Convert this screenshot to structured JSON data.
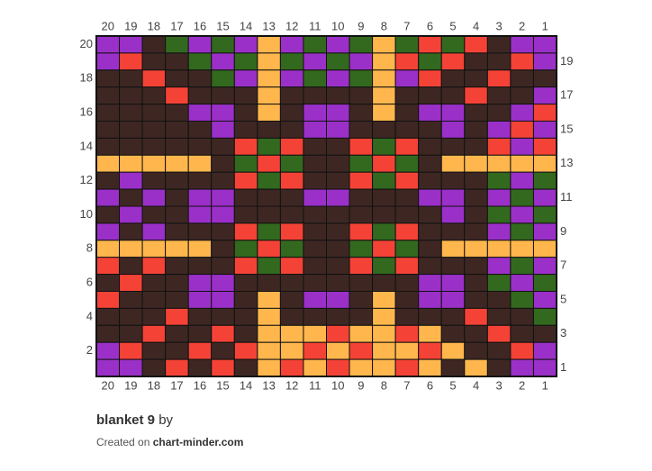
{
  "grid": {
    "columns": [
      20,
      19,
      18,
      17,
      16,
      15,
      14,
      13,
      12,
      11,
      10,
      9,
      8,
      7,
      6,
      5,
      4,
      3,
      2,
      1
    ],
    "rows_left": [
      20,
      18,
      16,
      14,
      12,
      10,
      8,
      6,
      4,
      2
    ],
    "rows_right": [
      19,
      17,
      15,
      13,
      11,
      9,
      7,
      5,
      3,
      1
    ],
    "cells": [
      [
        "#9b30c8",
        "#9b30c8",
        "#3e2723",
        "#33691e",
        "#9b30c8",
        "#33691e",
        "#9b30c8",
        "#ffb74d",
        "#9b30c8",
        "#33691e",
        "#9b30c8",
        "#33691e",
        "#ffb74d",
        "#33691e",
        "#f44336",
        "#33691e",
        "#f44336",
        "#3e2723",
        "#9b30c8",
        "#9b30c8"
      ],
      [
        "#9b30c8",
        "#f44336",
        "#3e2723",
        "#3e2723",
        "#33691e",
        "#9b30c8",
        "#33691e",
        "#ffb74d",
        "#33691e",
        "#9b30c8",
        "#33691e",
        "#9b30c8",
        "#ffb74d",
        "#f44336",
        "#33691e",
        "#f44336",
        "#3e2723",
        "#3e2723",
        "#f44336",
        "#9b30c8"
      ],
      [
        "#3e2723",
        "#3e2723",
        "#f44336",
        "#3e2723",
        "#3e2723",
        "#33691e",
        "#9b30c8",
        "#ffb74d",
        "#9b30c8",
        "#33691e",
        "#9b30c8",
        "#33691e",
        "#ffb74d",
        "#9b30c8",
        "#f44336",
        "#3e2723",
        "#3e2723",
        "#f44336",
        "#3e2723",
        "#3e2723"
      ],
      [
        "#3e2723",
        "#3e2723",
        "#3e2723",
        "#f44336",
        "#3e2723",
        "#3e2723",
        "#3e2723",
        "#ffb74d",
        "#3e2723",
        "#3e2723",
        "#3e2723",
        "#3e2723",
        "#ffb74d",
        "#3e2723",
        "#3e2723",
        "#3e2723",
        "#f44336",
        "#3e2723",
        "#3e2723",
        "#9b30c8"
      ],
      [
        "#3e2723",
        "#3e2723",
        "#3e2723",
        "#3e2723",
        "#9b30c8",
        "#9b30c8",
        "#3e2723",
        "#ffb74d",
        "#3e2723",
        "#9b30c8",
        "#9b30c8",
        "#3e2723",
        "#ffb74d",
        "#3e2723",
        "#9b30c8",
        "#9b30c8",
        "#3e2723",
        "#3e2723",
        "#9b30c8",
        "#f44336"
      ],
      [
        "#3e2723",
        "#3e2723",
        "#3e2723",
        "#3e2723",
        "#3e2723",
        "#9b30c8",
        "#3e2723",
        "#3e2723",
        "#3e2723",
        "#9b30c8",
        "#9b30c8",
        "#3e2723",
        "#3e2723",
        "#3e2723",
        "#3e2723",
        "#9b30c8",
        "#3e2723",
        "#9b30c8",
        "#f44336",
        "#9b30c8"
      ],
      [
        "#3e2723",
        "#3e2723",
        "#3e2723",
        "#3e2723",
        "#3e2723",
        "#3e2723",
        "#f44336",
        "#33691e",
        "#f44336",
        "#3e2723",
        "#3e2723",
        "#f44336",
        "#33691e",
        "#f44336",
        "#3e2723",
        "#3e2723",
        "#3e2723",
        "#f44336",
        "#9b30c8",
        "#f44336"
      ],
      [
        "#ffb74d",
        "#ffb74d",
        "#ffb74d",
        "#ffb74d",
        "#ffb74d",
        "#3e2723",
        "#33691e",
        "#f44336",
        "#33691e",
        "#3e2723",
        "#3e2723",
        "#33691e",
        "#f44336",
        "#33691e",
        "#3e2723",
        "#ffb74d",
        "#ffb74d",
        "#ffb74d",
        "#ffb74d",
        "#ffb74d"
      ],
      [
        "#3e2723",
        "#9b30c8",
        "#3e2723",
        "#3e2723",
        "#3e2723",
        "#3e2723",
        "#f44336",
        "#33691e",
        "#f44336",
        "#3e2723",
        "#3e2723",
        "#f44336",
        "#33691e",
        "#f44336",
        "#3e2723",
        "#3e2723",
        "#3e2723",
        "#33691e",
        "#9b30c8",
        "#33691e"
      ],
      [
        "#9b30c8",
        "#3e2723",
        "#9b30c8",
        "#3e2723",
        "#9b30c8",
        "#9b30c8",
        "#3e2723",
        "#3e2723",
        "#3e2723",
        "#9b30c8",
        "#9b30c8",
        "#3e2723",
        "#3e2723",
        "#3e2723",
        "#9b30c8",
        "#9b30c8",
        "#3e2723",
        "#9b30c8",
        "#33691e",
        "#9b30c8"
      ],
      [
        "#3e2723",
        "#9b30c8",
        "#3e2723",
        "#3e2723",
        "#9b30c8",
        "#9b30c8",
        "#3e2723",
        "#3e2723",
        "#3e2723",
        "#3e2723",
        "#3e2723",
        "#3e2723",
        "#3e2723",
        "#3e2723",
        "#3e2723",
        "#9b30c8",
        "#3e2723",
        "#33691e",
        "#9b30c8",
        "#33691e"
      ],
      [
        "#9b30c8",
        "#3e2723",
        "#9b30c8",
        "#3e2723",
        "#3e2723",
        "#3e2723",
        "#f44336",
        "#33691e",
        "#f44336",
        "#3e2723",
        "#3e2723",
        "#f44336",
        "#33691e",
        "#f44336",
        "#3e2723",
        "#3e2723",
        "#3e2723",
        "#9b30c8",
        "#33691e",
        "#9b30c8"
      ],
      [
        "#ffb74d",
        "#ffb74d",
        "#ffb74d",
        "#ffb74d",
        "#ffb74d",
        "#3e2723",
        "#33691e",
        "#f44336",
        "#33691e",
        "#3e2723",
        "#3e2723",
        "#33691e",
        "#f44336",
        "#33691e",
        "#3e2723",
        "#ffb74d",
        "#ffb74d",
        "#ffb74d",
        "#ffb74d",
        "#ffb74d"
      ],
      [
        "#f44336",
        "#3e2723",
        "#f44336",
        "#3e2723",
        "#3e2723",
        "#3e2723",
        "#f44336",
        "#33691e",
        "#f44336",
        "#3e2723",
        "#3e2723",
        "#f44336",
        "#33691e",
        "#f44336",
        "#3e2723",
        "#3e2723",
        "#3e2723",
        "#9b30c8",
        "#33691e",
        "#9b30c8"
      ],
      [
        "#3e2723",
        "#f44336",
        "#3e2723",
        "#3e2723",
        "#9b30c8",
        "#9b30c8",
        "#3e2723",
        "#3e2723",
        "#3e2723",
        "#3e2723",
        "#3e2723",
        "#3e2723",
        "#3e2723",
        "#3e2723",
        "#9b30c8",
        "#9b30c8",
        "#3e2723",
        "#33691e",
        "#9b30c8",
        "#33691e"
      ],
      [
        "#f44336",
        "#3e2723",
        "#3e2723",
        "#3e2723",
        "#9b30c8",
        "#9b30c8",
        "#3e2723",
        "#ffb74d",
        "#3e2723",
        "#9b30c8",
        "#9b30c8",
        "#3e2723",
        "#ffb74d",
        "#3e2723",
        "#9b30c8",
        "#9b30c8",
        "#3e2723",
        "#3e2723",
        "#33691e",
        "#9b30c8"
      ],
      [
        "#3e2723",
        "#3e2723",
        "#3e2723",
        "#f44336",
        "#3e2723",
        "#3e2723",
        "#3e2723",
        "#ffb74d",
        "#3e2723",
        "#3e2723",
        "#3e2723",
        "#3e2723",
        "#ffb74d",
        "#3e2723",
        "#3e2723",
        "#3e2723",
        "#f44336",
        "#3e2723",
        "#3e2723",
        "#33691e"
      ],
      [
        "#3e2723",
        "#3e2723",
        "#f44336",
        "#3e2723",
        "#3e2723",
        "#f44336",
        "#3e2723",
        "#ffb74d",
        "#ffb74d",
        "#ffb74d",
        "#f44336",
        "#ffb74d",
        "#ffb74d",
        "#f44336",
        "#ffb74d",
        "#3e2723",
        "#3e2723",
        "#f44336",
        "#3e2723",
        "#3e2723"
      ],
      [
        "#9b30c8",
        "#f44336",
        "#3e2723",
        "#3e2723",
        "#f44336",
        "#3e2723",
        "#f44336",
        "#ffb74d",
        "#ffb74d",
        "#f44336",
        "#ffb74d",
        "#f44336",
        "#ffb74d",
        "#ffb74d",
        "#f44336",
        "#ffb74d",
        "#3e2723",
        "#3e2723",
        "#f44336",
        "#9b30c8"
      ],
      [
        "#9b30c8",
        "#9b30c8",
        "#3e2723",
        "#f44336",
        "#3e2723",
        "#f44336",
        "#3e2723",
        "#ffb74d",
        "#f44336",
        "#ffb74d",
        "#f44336",
        "#ffb74d",
        "#ffb74d",
        "#f44336",
        "#ffb74d",
        "#3e2723",
        "#ffb74d",
        "#3e2723",
        "#9b30c8",
        "#9b30c8"
      ]
    ]
  },
  "footer": {
    "title": "blanket 9",
    "by": "by",
    "created": "Created on",
    "site": "chart-minder.com"
  }
}
